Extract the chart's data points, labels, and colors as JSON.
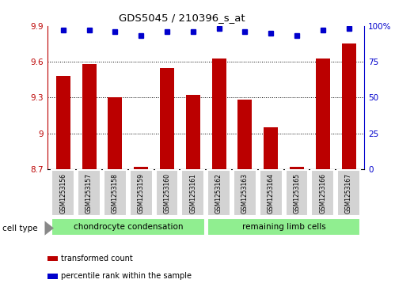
{
  "title": "GDS5045 / 210396_s_at",
  "samples": [
    "GSM1253156",
    "GSM1253157",
    "GSM1253158",
    "GSM1253159",
    "GSM1253160",
    "GSM1253161",
    "GSM1253162",
    "GSM1253163",
    "GSM1253164",
    "GSM1253165",
    "GSM1253166",
    "GSM1253167"
  ],
  "bar_values": [
    9.48,
    9.58,
    9.3,
    8.72,
    9.55,
    9.32,
    9.63,
    9.28,
    9.05,
    8.72,
    9.63,
    9.75
  ],
  "percentile_values": [
    97,
    97,
    96,
    93,
    96,
    96,
    98,
    96,
    95,
    93,
    97,
    98
  ],
  "bar_color": "#bb0000",
  "percentile_color": "#0000cc",
  "ylim_left": [
    8.7,
    9.9
  ],
  "ylim_right": [
    0,
    100
  ],
  "yticks_left": [
    8.7,
    9.0,
    9.3,
    9.6,
    9.9
  ],
  "ytick_labels_left": [
    "8.7",
    "9",
    "9.3",
    "9.6",
    "9.9"
  ],
  "yticks_right": [
    0,
    25,
    50,
    75,
    100
  ],
  "ytick_labels_right": [
    "0",
    "25",
    "50",
    "75",
    "100%"
  ],
  "gridlines": [
    9.0,
    9.3,
    9.6
  ],
  "groups": [
    {
      "label": "chondrocyte condensation",
      "start": 0,
      "end": 5
    },
    {
      "label": "remaining limb cells",
      "start": 6,
      "end": 11
    }
  ],
  "group_color": "#90ee90",
  "sample_box_color": "#d3d3d3",
  "cell_type_label": "cell type",
  "legend": [
    {
      "label": "transformed count",
      "color": "#bb0000"
    },
    {
      "label": "percentile rank within the sample",
      "color": "#0000cc"
    }
  ]
}
